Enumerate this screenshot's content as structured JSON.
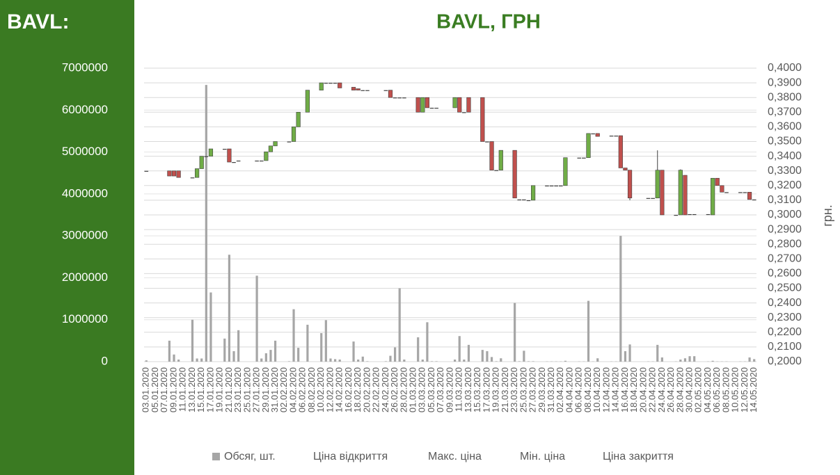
{
  "header": {
    "title": "BAVL:"
  },
  "chart_data": {
    "type": "candlestick",
    "title": "BAVL, ГРН",
    "y2label": "грн.",
    "x": [
      "03.01.2020",
      "08.01.2020",
      "09.01.2020",
      "10.01.2020",
      "13.01.2020",
      "14.01.2020",
      "15.01.2020",
      "16.01.2020",
      "17.01.2020",
      "20.01.2020",
      "21.01.2020",
      "22.01.2020",
      "23.01.2020",
      "27.01.2020",
      "28.01.2020",
      "29.01.2020",
      "30.01.2020",
      "31.01.2020",
      "03.02.2020",
      "04.02.2020",
      "05.02.2020",
      "07.02.2020",
      "10.02.2020",
      "11.02.2020",
      "12.02.2020",
      "13.02.2020",
      "14.02.2020",
      "17.02.2020",
      "18.02.2020",
      "19.02.2020",
      "20.02.2020",
      "24.02.2020",
      "25.02.2020",
      "26.02.2020",
      "27.02.2020",
      "28.02.2020",
      "02.03.2020",
      "03.03.2020",
      "04.03.2020",
      "05.03.2020",
      "06.03.2020",
      "10.03.2020",
      "11.03.2020",
      "12.03.2020",
      "13.03.2020",
      "16.03.2020",
      "17.03.2020",
      "18.03.2020",
      "19.03.2020",
      "20.03.2020",
      "23.03.2020",
      "24.03.2020",
      "25.03.2020",
      "26.03.2020",
      "27.03.2020",
      "30.03.2020",
      "31.03.2020",
      "01.04.2020",
      "02.04.2020",
      "03.04.2020",
      "06.04.2020",
      "07.04.2020",
      "08.04.2020",
      "09.04.2020",
      "10.04.2020",
      "13.04.2020",
      "14.04.2020",
      "15.04.2020",
      "16.04.2020",
      "17.04.2020",
      "21.04.2020",
      "22.04.2020",
      "23.04.2020",
      "24.04.2020",
      "27.04.2020",
      "28.04.2020",
      "29.04.2020",
      "30.04.2020",
      "01.05.2020",
      "04.05.2020",
      "05.05.2020",
      "06.05.2020",
      "07.05.2020",
      "08.05.2020",
      "11.05.2020",
      "12.05.2020",
      "13.05.2020",
      "14.05.2020"
    ],
    "xlim": [
      "03.01.2020",
      "14.05.2020"
    ],
    "xticks": [
      "03.01.2020",
      "05.01.2020",
      "07.01.2020",
      "09.01.2020",
      "11.01.2020",
      "13.01.2020",
      "15.01.2020",
      "17.01.2020",
      "19.01.2020",
      "21.01.2020",
      "23.01.2020",
      "25.01.2020",
      "27.01.2020",
      "29.01.2020",
      "31.01.2020",
      "02.02.2020",
      "04.02.2020",
      "06.02.2020",
      "08.02.2020",
      "10.02.2020",
      "12.02.2020",
      "14.02.2020",
      "16.02.2020",
      "18.02.2020",
      "20.02.2020",
      "22.02.2020",
      "24.02.2020",
      "26.02.2020",
      "28.02.2020",
      "01.03.2020",
      "03.03.2020",
      "05.03.2020",
      "07.03.2020",
      "09.03.2020",
      "11.03.2020",
      "13.03.2020",
      "15.03.2020",
      "17.03.2020",
      "19.03.2020",
      "21.03.2020",
      "23.03.2020",
      "25.03.2020",
      "27.03.2020",
      "29.03.2020",
      "31.03.2020",
      "02.04.2020",
      "04.04.2020",
      "06.04.2020",
      "08.04.2020",
      "10.04.2020",
      "12.04.2020",
      "14.04.2020",
      "16.04.2020",
      "18.04.2020",
      "20.04.2020",
      "22.04.2020",
      "24.04.2020",
      "26.04.2020",
      "28.04.2020",
      "30.04.2020",
      "02.05.2020",
      "04.05.2020",
      "06.05.2020",
      "08.05.2020",
      "10.05.2020",
      "12.05.2020",
      "14.05.2020"
    ],
    "ylim": [
      0,
      7000000
    ],
    "yticks": [
      0,
      1000000,
      2000000,
      3000000,
      4000000,
      5000000,
      6000000,
      7000000
    ],
    "y2lim": [
      0.2,
      0.4
    ],
    "y2ticks": [
      {
        "value": 0.2,
        "label": "0,2000"
      },
      {
        "value": 0.21,
        "label": "0,2100"
      },
      {
        "value": 0.22,
        "label": "0,2200"
      },
      {
        "value": 0.23,
        "label": "0,2300"
      },
      {
        "value": 0.24,
        "label": "0,2400"
      },
      {
        "value": 0.25,
        "label": "0,2500"
      },
      {
        "value": 0.26,
        "label": "0,2600"
      },
      {
        "value": 0.27,
        "label": "0,2700"
      },
      {
        "value": 0.28,
        "label": "0,2800"
      },
      {
        "value": 0.29,
        "label": "0,2900"
      },
      {
        "value": 0.3,
        "label": "0,3000"
      },
      {
        "value": 0.31,
        "label": "0,3100"
      },
      {
        "value": 0.32,
        "label": "0,3200"
      },
      {
        "value": 0.33,
        "label": "0,3300"
      },
      {
        "value": 0.34,
        "label": "0,3400"
      },
      {
        "value": 0.35,
        "label": "0,3500"
      },
      {
        "value": 0.36,
        "label": "0,3600"
      },
      {
        "value": 0.37,
        "label": "0,3700"
      },
      {
        "value": 0.38,
        "label": "0,3800"
      },
      {
        "value": 0.39,
        "label": "0,3900"
      },
      {
        "value": 0.4,
        "label": "0,4000"
      }
    ],
    "grid": true,
    "legend": "bottom",
    "up_color": "#70ad47",
    "down_color": "#c0504d",
    "series": [
      {
        "name": "Обсяг, шт.",
        "color": "#a6a6a6",
        "values": [
          30000,
          500000,
          170000,
          50000,
          1000000,
          75000,
          75000,
          6600000,
          1650000,
          550000,
          2550000,
          250000,
          750000,
          2050000,
          75000,
          200000,
          280000,
          500000,
          10000,
          1250000,
          330000,
          880000,
          680000,
          990000,
          75000,
          60000,
          50000,
          480000,
          50000,
          120000,
          10000,
          10000,
          140000,
          340000,
          1750000,
          50000,
          580000,
          50000,
          940000,
          10000,
          10000,
          50000,
          610000,
          50000,
          400000,
          280000,
          250000,
          110000,
          10000,
          80000,
          1400000,
          10000,
          260000,
          10000,
          10000,
          5000,
          5000,
          5000,
          5000,
          20000,
          5000,
          5000,
          1450000,
          5000,
          80000,
          5000,
          5000,
          3000000,
          250000,
          410000,
          5000,
          5000,
          400000,
          100000,
          5000,
          50000,
          80000,
          130000,
          130000,
          5000,
          20000,
          5000,
          5000,
          5000,
          5000,
          5000,
          100000,
          60000
        ]
      },
      {
        "name": "Ціна відкриття",
        "axis": "y2",
        "values": [
          0.33,
          0.33,
          0.33,
          0.33,
          0.3255,
          0.3255,
          0.3315,
          0.34,
          0.34,
          0.345,
          0.345,
          0.336,
          0.337,
          0.337,
          0.337,
          0.337,
          0.343,
          0.347,
          0.35,
          0.35,
          0.36,
          0.37,
          0.385,
          0.39,
          0.39,
          0.39,
          0.39,
          0.387,
          0.386,
          0.385,
          0.385,
          0.385,
          0.385,
          0.38,
          0.38,
          0.38,
          0.38,
          0.37,
          0.38,
          0.373,
          0.373,
          0.373,
          0.38,
          0.37,
          0.38,
          0.38,
          0.35,
          0.35,
          0.3305,
          0.3305,
          0.344,
          0.3105,
          0.3105,
          0.31,
          0.31,
          0.32,
          0.32,
          0.32,
          0.32,
          0.32,
          0.339,
          0.339,
          0.339,
          0.3555,
          0.3555,
          0.354,
          0.354,
          0.354,
          0.332,
          0.3305,
          0.3115,
          0.3115,
          0.3115,
          0.3305,
          0.3,
          0.3,
          0.327,
          0.3005,
          0.3005,
          0.3005,
          0.3,
          0.325,
          0.32,
          0.3155,
          0.3155,
          0.3155,
          0.3155,
          0.3105
        ]
      },
      {
        "name": "Макс. ціна",
        "axis": "y2",
        "values": [
          0.33,
          0.33,
          0.33,
          0.33,
          0.3255,
          0.3315,
          0.34,
          0.34,
          0.345,
          0.345,
          0.345,
          0.336,
          0.337,
          0.337,
          0.337,
          0.343,
          0.347,
          0.35,
          0.35,
          0.36,
          0.37,
          0.385,
          0.39,
          0.39,
          0.39,
          0.39,
          0.39,
          0.387,
          0.386,
          0.385,
          0.385,
          0.385,
          0.385,
          0.38,
          0.38,
          0.38,
          0.38,
          0.38,
          0.38,
          0.373,
          0.373,
          0.38,
          0.38,
          0.37,
          0.38,
          0.38,
          0.35,
          0.35,
          0.3305,
          0.344,
          0.344,
          0.3105,
          0.3105,
          0.31,
          0.32,
          0.32,
          0.32,
          0.32,
          0.32,
          0.339,
          0.339,
          0.339,
          0.3555,
          0.3555,
          0.3555,
          0.354,
          0.354,
          0.354,
          0.332,
          0.3305,
          0.3115,
          0.3115,
          0.344,
          0.3305,
          0.3,
          0.331,
          0.327,
          0.3005,
          0.3005,
          0.3005,
          0.325,
          0.325,
          0.32,
          0.3155,
          0.3155,
          0.3155,
          0.3155,
          0.3105
        ]
      },
      {
        "name": "Мін. ціна",
        "axis": "y2",
        "values": [
          0.33,
          0.3265,
          0.3265,
          0.3255,
          0.3255,
          0.3255,
          0.3315,
          0.34,
          0.34,
          0.345,
          0.336,
          0.336,
          0.337,
          0.337,
          0.337,
          0.337,
          0.343,
          0.347,
          0.35,
          0.35,
          0.36,
          0.37,
          0.385,
          0.39,
          0.39,
          0.39,
          0.3865,
          0.385,
          0.385,
          0.385,
          0.385,
          0.385,
          0.38,
          0.38,
          0.38,
          0.38,
          0.37,
          0.37,
          0.373,
          0.373,
          0.373,
          0.373,
          0.37,
          0.37,
          0.37,
          0.35,
          0.35,
          0.3305,
          0.3305,
          0.3305,
          0.3115,
          0.3105,
          0.3105,
          0.31,
          0.31,
          0.32,
          0.32,
          0.32,
          0.32,
          0.32,
          0.339,
          0.339,
          0.339,
          0.3555,
          0.3535,
          0.354,
          0.354,
          0.332,
          0.3305,
          0.31,
          0.3115,
          0.3115,
          0.3115,
          0.3,
          0.3,
          0.3,
          0.3,
          0.3005,
          0.3005,
          0.3005,
          0.3,
          0.32,
          0.3155,
          0.3155,
          0.3155,
          0.3155,
          0.3105,
          0.3105
        ]
      },
      {
        "name": "Ціна закриття",
        "axis": "y2",
        "values": [
          0.33,
          0.3265,
          0.3265,
          0.3255,
          0.3255,
          0.3315,
          0.34,
          0.34,
          0.345,
          0.345,
          0.336,
          0.336,
          0.337,
          0.337,
          0.337,
          0.343,
          0.347,
          0.35,
          0.35,
          0.36,
          0.37,
          0.385,
          0.39,
          0.39,
          0.39,
          0.39,
          0.3865,
          0.385,
          0.385,
          0.385,
          0.385,
          0.385,
          0.38,
          0.38,
          0.38,
          0.38,
          0.37,
          0.38,
          0.373,
          0.373,
          0.373,
          0.38,
          0.37,
          0.37,
          0.37,
          0.35,
          0.35,
          0.3305,
          0.3305,
          0.344,
          0.3115,
          0.3105,
          0.3105,
          0.31,
          0.32,
          0.32,
          0.32,
          0.32,
          0.32,
          0.339,
          0.339,
          0.339,
          0.3555,
          0.3555,
          0.3535,
          0.354,
          0.354,
          0.332,
          0.3305,
          0.3115,
          0.3115,
          0.3115,
          0.3305,
          0.3,
          0.3,
          0.3305,
          0.3,
          0.3005,
          0.3005,
          0.3005,
          0.325,
          0.32,
          0.3155,
          0.3155,
          0.3155,
          0.3155,
          0.3105,
          0.3105
        ]
      }
    ]
  }
}
